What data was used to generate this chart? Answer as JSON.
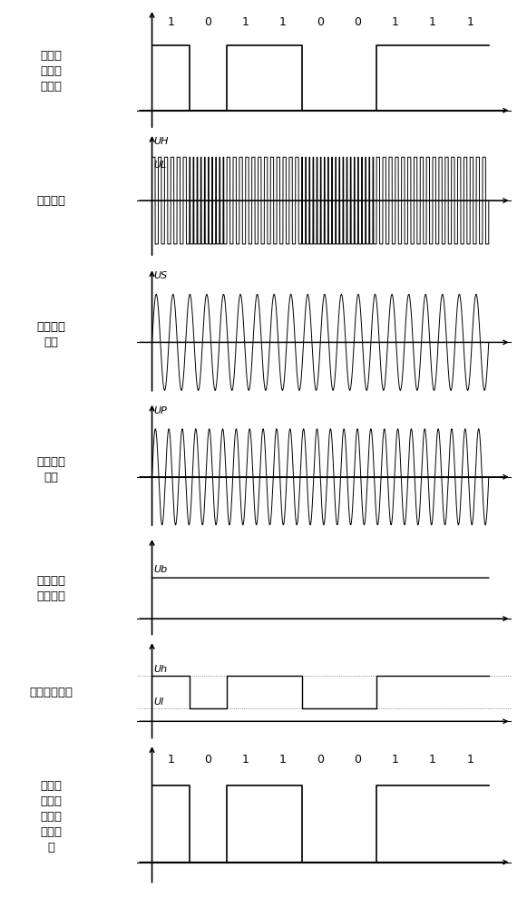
{
  "bits": [
    1,
    0,
    1,
    1,
    0,
    0,
    1,
    1,
    1
  ],
  "bit_duration": 1.0,
  "panels": [
    {
      "label_cn": "第二识\n别码开\n关信号",
      "yaxis_label": "",
      "type": "digital"
    },
    {
      "label_cn": "逆变电压",
      "yaxis_label": "UH\nUL",
      "type": "pwm"
    },
    {
      "label_cn": "第一谐振\n电压",
      "yaxis_label": "US",
      "type": "sine"
    },
    {
      "label_cn": "第二谐振\n电压",
      "yaxis_label": "UP",
      "type": "sine2"
    },
    {
      "label_cn": "整流波形\n（副边）",
      "yaxis_label": "Ub",
      "type": "dc"
    },
    {
      "label_cn": "锁相电压波形",
      "yaxis_label": "Uh\nUl",
      "type": "phase"
    },
    {
      "label_cn": "解调后\n的第二\n识别码\n开关信\n号",
      "yaxis_label": "",
      "type": "digital"
    }
  ],
  "bg": "#ffffff",
  "lc": "#000000",
  "pwm_freq_1": 6,
  "pwm_freq_0": 10,
  "sine_freq": 20,
  "sine2_freq": 25,
  "font_size": 9,
  "label_fs": 8
}
